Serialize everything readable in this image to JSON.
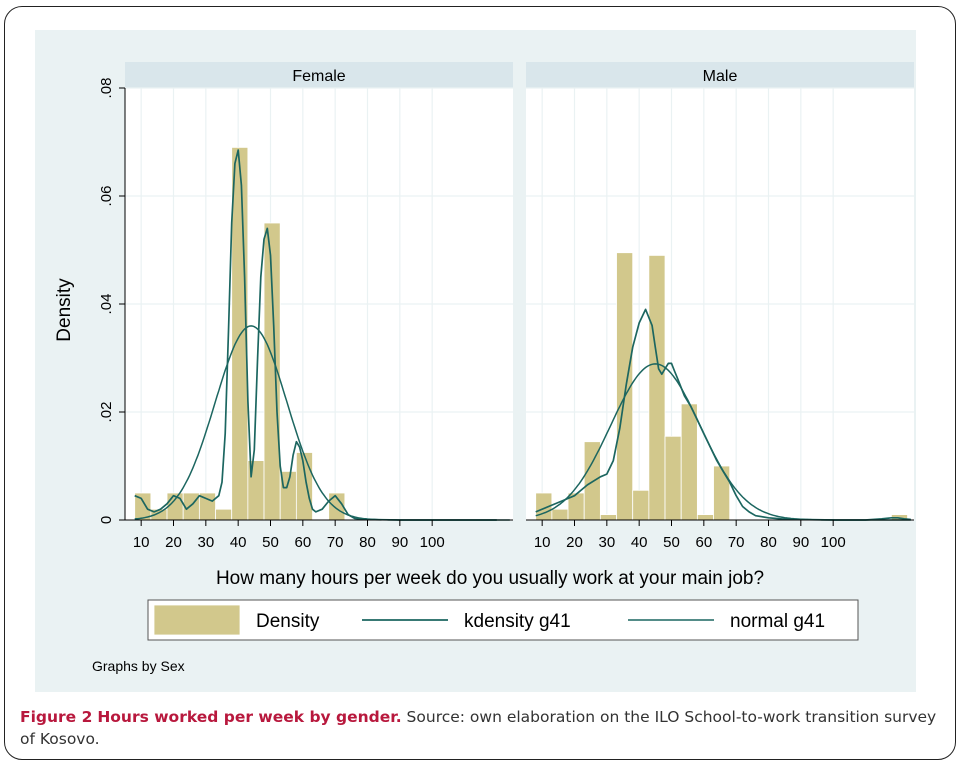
{
  "colors": {
    "plot_background": "#eaf2f3",
    "panel_background": "#ffffff",
    "strip_background": "#d9e6eb",
    "gridline": "#eaf2f3",
    "bar_fill": "#d2c88c",
    "bar_edge": "#ffffff",
    "line": "#1c6660",
    "caption_accent": "#b8183d"
  },
  "chart_data": [
    {
      "type": "bar",
      "panel_title": "Female",
      "bin_width": 5,
      "bins": [
        {
          "x0": 8,
          "value": 0.005
        },
        {
          "x0": 13,
          "value": 0.002
        },
        {
          "x0": 18,
          "value": 0.005
        },
        {
          "x0": 23,
          "value": 0.005
        },
        {
          "x0": 28,
          "value": 0.005
        },
        {
          "x0": 33,
          "value": 0.002
        },
        {
          "x0": 38,
          "value": 0.069
        },
        {
          "x0": 43,
          "value": 0.011
        },
        {
          "x0": 48,
          "value": 0.055
        },
        {
          "x0": 53,
          "value": 0.009
        },
        {
          "x0": 58,
          "value": 0.0125
        },
        {
          "x0": 63,
          "value": 0
        },
        {
          "x0": 68,
          "value": 0.005
        }
      ],
      "kdensity": {
        "x": [
          8,
          10,
          12,
          14,
          16,
          18,
          20,
          22,
          24,
          26,
          28,
          30,
          32,
          34,
          35,
          36,
          37,
          38,
          39,
          40,
          41,
          42,
          43,
          44,
          45,
          46,
          47,
          48,
          49,
          50,
          51,
          52,
          53,
          54,
          55,
          56,
          57,
          58,
          59,
          60,
          61,
          62,
          63,
          64,
          66,
          68,
          70,
          72,
          74,
          76,
          80,
          90,
          100,
          110,
          120
        ],
        "y": [
          0.0045,
          0.004,
          0.002,
          0.0015,
          0.002,
          0.003,
          0.0045,
          0.004,
          0.002,
          0.003,
          0.0045,
          0.004,
          0.0035,
          0.0045,
          0.007,
          0.016,
          0.035,
          0.055,
          0.066,
          0.0685,
          0.062,
          0.045,
          0.022,
          0.008,
          0.013,
          0.03,
          0.045,
          0.052,
          0.054,
          0.049,
          0.036,
          0.02,
          0.01,
          0.006,
          0.006,
          0.008,
          0.012,
          0.0145,
          0.0135,
          0.011,
          0.007,
          0.004,
          0.002,
          0.0015,
          0.002,
          0.0035,
          0.0045,
          0.003,
          0.001,
          0.0003,
          0.0001,
          0.0,
          0.0,
          0.0,
          0.0
        ]
      },
      "normal": {
        "mean": 44,
        "sd": 11.1
      },
      "x_range": [
        5,
        125
      ],
      "ylim": [
        0,
        0.08
      ]
    },
    {
      "type": "bar",
      "panel_title": "Male",
      "bin_width": 5,
      "bins": [
        {
          "x0": 8,
          "value": 0.005
        },
        {
          "x0": 13,
          "value": 0.002
        },
        {
          "x0": 18,
          "value": 0.005
        },
        {
          "x0": 23,
          "value": 0.0145
        },
        {
          "x0": 28,
          "value": 0.001
        },
        {
          "x0": 33,
          "value": 0.0495
        },
        {
          "x0": 38,
          "value": 0.0055
        },
        {
          "x0": 43,
          "value": 0.049
        },
        {
          "x0": 48,
          "value": 0.0155
        },
        {
          "x0": 53,
          "value": 0.0215
        },
        {
          "x0": 58,
          "value": 0.001
        },
        {
          "x0": 63,
          "value": 0.01
        },
        {
          "x0": 118,
          "value": 0.001
        }
      ],
      "kdensity": {
        "x": [
          8,
          12,
          16,
          20,
          24,
          28,
          30,
          32,
          34,
          36,
          38,
          40,
          42,
          44,
          45,
          46,
          47,
          48,
          49,
          50,
          51,
          52,
          54,
          56,
          58,
          60,
          62,
          64,
          66,
          68,
          70,
          72,
          74,
          76,
          80,
          84,
          90,
          100,
          110,
          115,
          118,
          120,
          122,
          124
        ],
        "y": [
          0.0015,
          0.0025,
          0.0035,
          0.0045,
          0.0065,
          0.008,
          0.0085,
          0.011,
          0.017,
          0.025,
          0.032,
          0.0365,
          0.039,
          0.036,
          0.032,
          0.028,
          0.027,
          0.028,
          0.029,
          0.029,
          0.0275,
          0.026,
          0.023,
          0.021,
          0.0185,
          0.016,
          0.0135,
          0.011,
          0.009,
          0.007,
          0.0045,
          0.0025,
          0.0015,
          0.0008,
          0.0004,
          0.0002,
          0.0001,
          0.0,
          0.0,
          0.0002,
          0.0004,
          0.0004,
          0.0002,
          0.0001
        ]
      },
      "normal": {
        "mean": 45,
        "sd": 13.8
      },
      "x_range": [
        5,
        125
      ],
      "ylim": [
        0,
        0.08
      ]
    }
  ],
  "axes": {
    "ylabel": "Density",
    "xlabel": "How many hours per week do you usually work at your main job?",
    "yticks": [
      0,
      0.02,
      0.04,
      0.06,
      0.08
    ],
    "ytick_labels": [
      "0",
      ".02",
      ".04",
      ".06",
      ".08"
    ],
    "xticks": [
      10,
      20,
      30,
      40,
      50,
      60,
      70,
      80,
      90,
      100
    ]
  },
  "legend": {
    "placement": "bottom",
    "entries": [
      "Density",
      "kdensity g41",
      "normal g41"
    ]
  },
  "note": "Graphs by Sex",
  "caption": {
    "label": "Figure 2",
    "title": "Hours worked per week by gender.",
    "text": "Source: own elaboration on the ILO School-to-work transition survey of Kosovo."
  }
}
